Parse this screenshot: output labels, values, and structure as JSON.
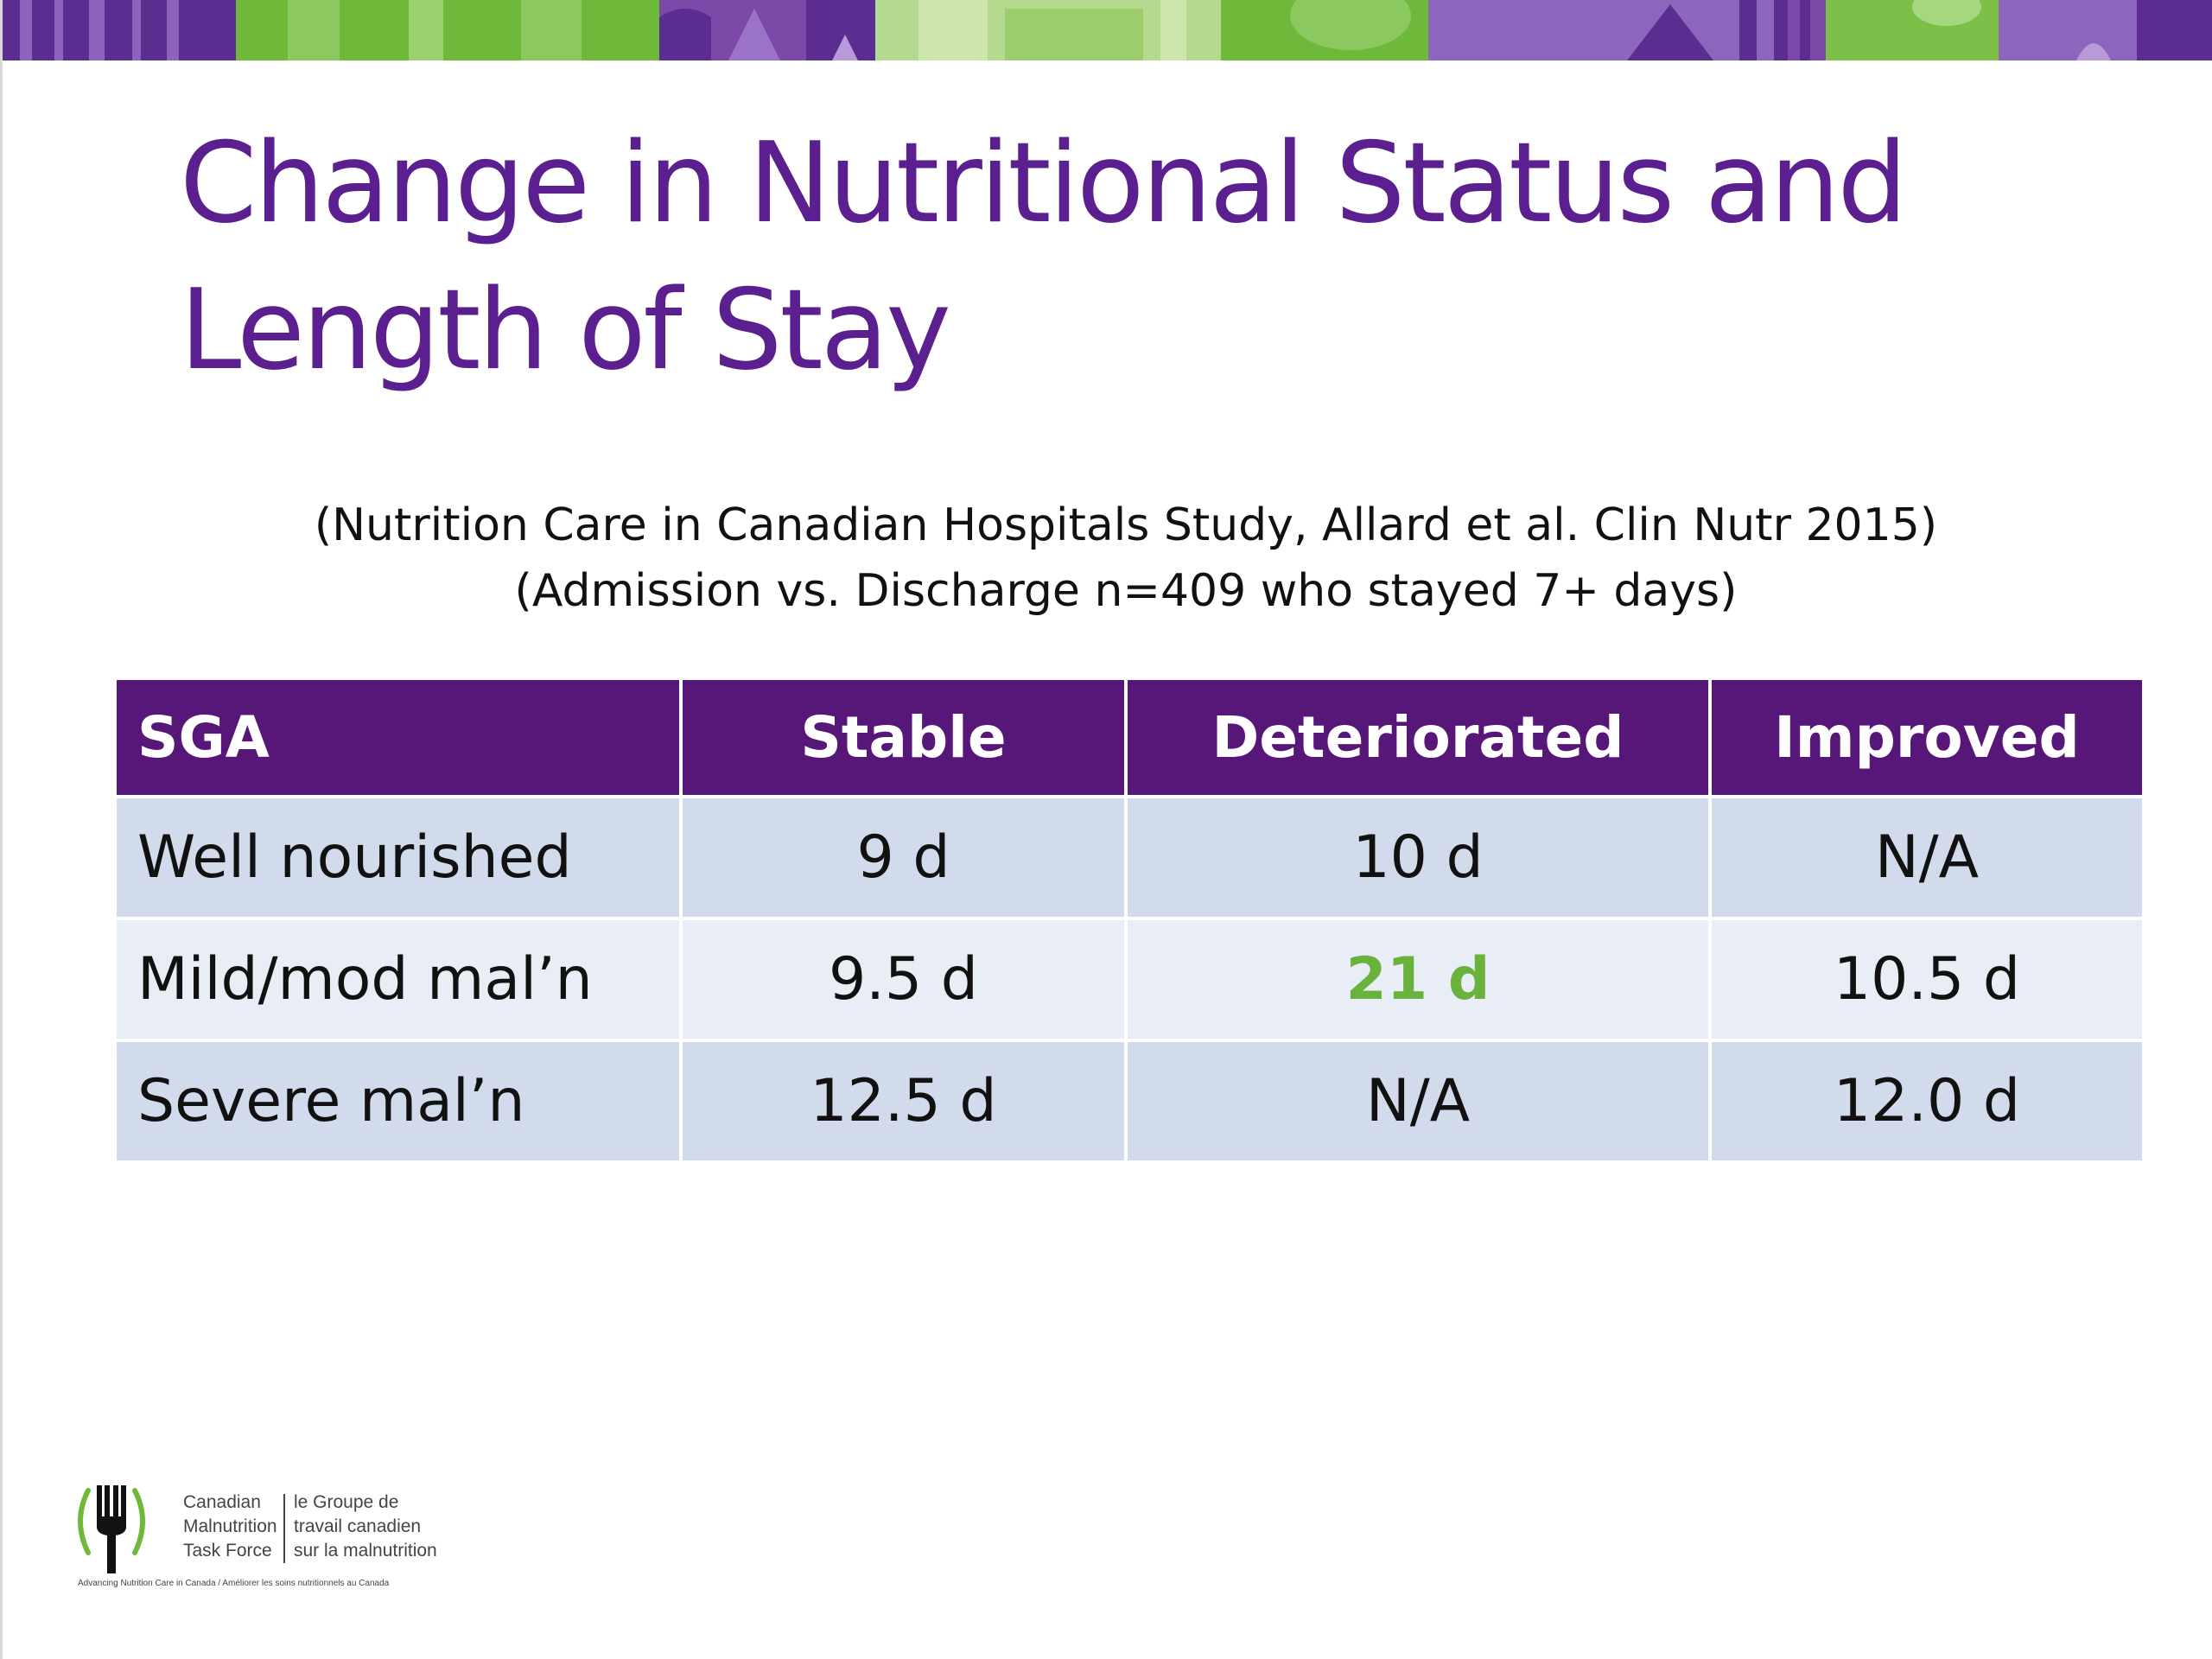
{
  "slide": {
    "title": "Change in Nutritional Status and Length of Stay",
    "subtitle_lines": [
      "(Nutrition Care in Canadian Hospitals Study, Allard et al. Clin Nutr 2015)",
      "(Admission vs. Discharge n=409 who stayed 7+ days)"
    ]
  },
  "table": {
    "headers": [
      "SGA",
      "Stable",
      "Deteriorated",
      "Improved"
    ],
    "rows": [
      [
        "Well nourished",
        "9 d",
        "10 d",
        "N/A"
      ],
      [
        "Mild/mod mal’n",
        "9.5 d",
        "21 d",
        "10.5 d"
      ],
      [
        "Severe mal’n",
        "12.5 d",
        "N/A",
        "12.0 d"
      ]
    ],
    "highlighted_cell": {
      "row": 1,
      "col": 2
    }
  },
  "logo": {
    "en_lines": [
      "Canadian",
      "Malnutrition",
      "Task Force"
    ],
    "fr_lines": [
      "le Groupe de",
      "travail canadien",
      "sur la malnutrition"
    ],
    "tagline": "Advancing Nutrition Care in Canada / Améliorer les soins nutritionnels au Canada"
  },
  "colors": {
    "title": "#5b1f8f",
    "header_bg": "#561779",
    "row_odd_bg": "#d2dbeb",
    "row_even_bg": "#e9edf5",
    "highlight": "#6ab23e"
  }
}
